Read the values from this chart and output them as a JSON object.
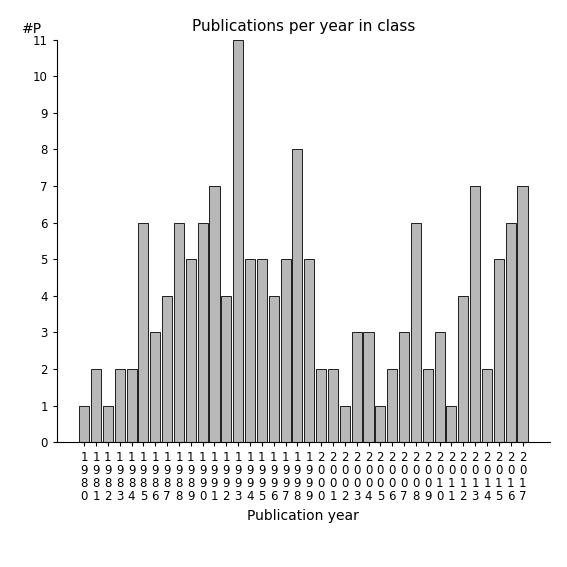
{
  "title": "Publications per year in class",
  "xlabel": "Publication year",
  "ylabel": "#P",
  "years": [
    1980,
    1981,
    1982,
    1983,
    1984,
    1985,
    1986,
    1987,
    1988,
    1989,
    1990,
    1991,
    1992,
    1993,
    1994,
    1995,
    1996,
    1997,
    1998,
    1999,
    2000,
    2001,
    2002,
    2003,
    2004,
    2005,
    2006,
    2007,
    2008,
    2009,
    2010,
    2011,
    2012,
    2013,
    2014,
    2015,
    2016,
    2017
  ],
  "values": [
    1,
    2,
    1,
    2,
    2,
    6,
    3,
    4,
    6,
    5,
    6,
    7,
    4,
    11,
    5,
    5,
    4,
    5,
    8,
    5,
    2,
    2,
    1,
    3,
    3,
    1,
    2,
    3,
    6,
    2,
    3,
    1,
    4,
    7,
    2,
    5,
    6,
    7
  ],
  "bar_color": "#b8b8b8",
  "bar_edgecolor": "#000000",
  "ylim_max": 11,
  "yticks": [
    0,
    1,
    2,
    3,
    4,
    5,
    6,
    7,
    8,
    9,
    10,
    11
  ],
  "title_fontsize": 11,
  "axlabel_fontsize": 10,
  "tick_fontsize": 8.5,
  "background_color": "#ffffff",
  "figsize": [
    5.67,
    5.67
  ],
  "dpi": 100
}
